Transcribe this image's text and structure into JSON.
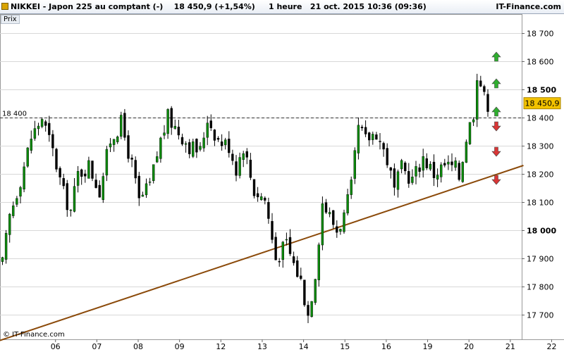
{
  "header": {
    "title_left": "NIKKEI - Japon 225 au comptant (-)    18 450,9 (+1,54%)     1 heure   21 oct. 2015 10:36 (09:36)",
    "title_right": "IT-Finance.com",
    "panel_label": "Prix",
    "copyright": "© IT-Finance.com"
  },
  "colors": {
    "candle_up": "#0b8a0b",
    "candle_down": "#000000",
    "trendline": "#8b4a0a",
    "grid": "#d8d8d8",
    "price_badge": "#f2c200",
    "arrow_up": "#2fae2f",
    "arrow_down": "#d93636"
  },
  "chart_data": {
    "type": "candlestick",
    "ylim": [
      17650,
      18750
    ],
    "y_ticks": [
      "18 700",
      "18 600",
      "18 500",
      "18 400",
      "18 300",
      "18 200",
      "18 100",
      "18 000",
      "17 900",
      "17 800",
      "17 700"
    ],
    "y_tick_values": [
      18700,
      18600,
      18500,
      18400,
      18300,
      18200,
      18100,
      18000,
      17900,
      17800,
      17700
    ],
    "bold_ticks": [
      "18 500",
      "18 000"
    ],
    "x_ticks": [
      "06",
      "07",
      "08",
      "09",
      "12",
      "13",
      "14",
      "15",
      "16",
      "19",
      "20",
      "21",
      "22"
    ],
    "x_tick_bar": [
      7,
      18.5,
      30,
      41.5,
      53,
      64.5,
      76,
      87.5,
      99,
      110.5,
      122,
      133.5,
      145
    ],
    "bar_count": 136,
    "close_path": [
      [
        0,
        17880
      ],
      [
        2,
        18050
      ],
      [
        5,
        18180
      ],
      [
        8,
        18330
      ],
      [
        11,
        18400
      ],
      [
        14,
        18280
      ],
      [
        17,
        18130
      ],
      [
        19,
        18070
      ],
      [
        21,
        18200
      ],
      [
        24,
        18230
      ],
      [
        27,
        18140
      ],
      [
        30,
        18320
      ],
      [
        33,
        18380
      ],
      [
        36,
        18230
      ],
      [
        38,
        18100
      ],
      [
        41,
        18160
      ],
      [
        44,
        18320
      ],
      [
        46,
        18400
      ],
      [
        49,
        18350
      ],
      [
        52,
        18300
      ],
      [
        55,
        18280
      ],
      [
        57,
        18400
      ],
      [
        60,
        18320
      ],
      [
        63,
        18300
      ],
      [
        65,
        18220
      ],
      [
        67,
        18300
      ],
      [
        70,
        18140
      ],
      [
        73,
        18110
      ],
      [
        76,
        17900
      ],
      [
        79,
        17950
      ],
      [
        81,
        17880
      ],
      [
        83,
        17820
      ],
      [
        85,
        17700
      ],
      [
        87,
        17850
      ],
      [
        89,
        18100
      ],
      [
        91,
        18050
      ],
      [
        93,
        18000
      ],
      [
        95,
        18050
      ],
      [
        97,
        18150
      ],
      [
        99,
        18360
      ],
      [
        101,
        18320
      ],
      [
        104,
        18350
      ],
      [
        107,
        18250
      ],
      [
        109,
        18140
      ],
      [
        111,
        18220
      ],
      [
        114,
        18180
      ],
      [
        117,
        18260
      ],
      [
        120,
        18200
      ],
      [
        123,
        18230
      ],
      [
        126,
        18220
      ],
      [
        127,
        18190
      ],
      [
        129,
        18330
      ],
      [
        131,
        18420
      ],
      [
        132,
        18560
      ],
      [
        133,
        18520
      ],
      [
        134,
        18470
      ],
      [
        135,
        18450
      ]
    ],
    "reference_line": {
      "value": 18400,
      "label": "18 400"
    },
    "trendline": {
      "from": [
        -12,
        17560
      ],
      "to": [
        145,
        18230
      ]
    },
    "current_price": {
      "value": 18450.9,
      "label": "18 450,9"
    },
    "arrows_up": [
      18615,
      18520,
      18420
    ],
    "arrows_down": [
      18370,
      18280,
      18180
    ]
  }
}
